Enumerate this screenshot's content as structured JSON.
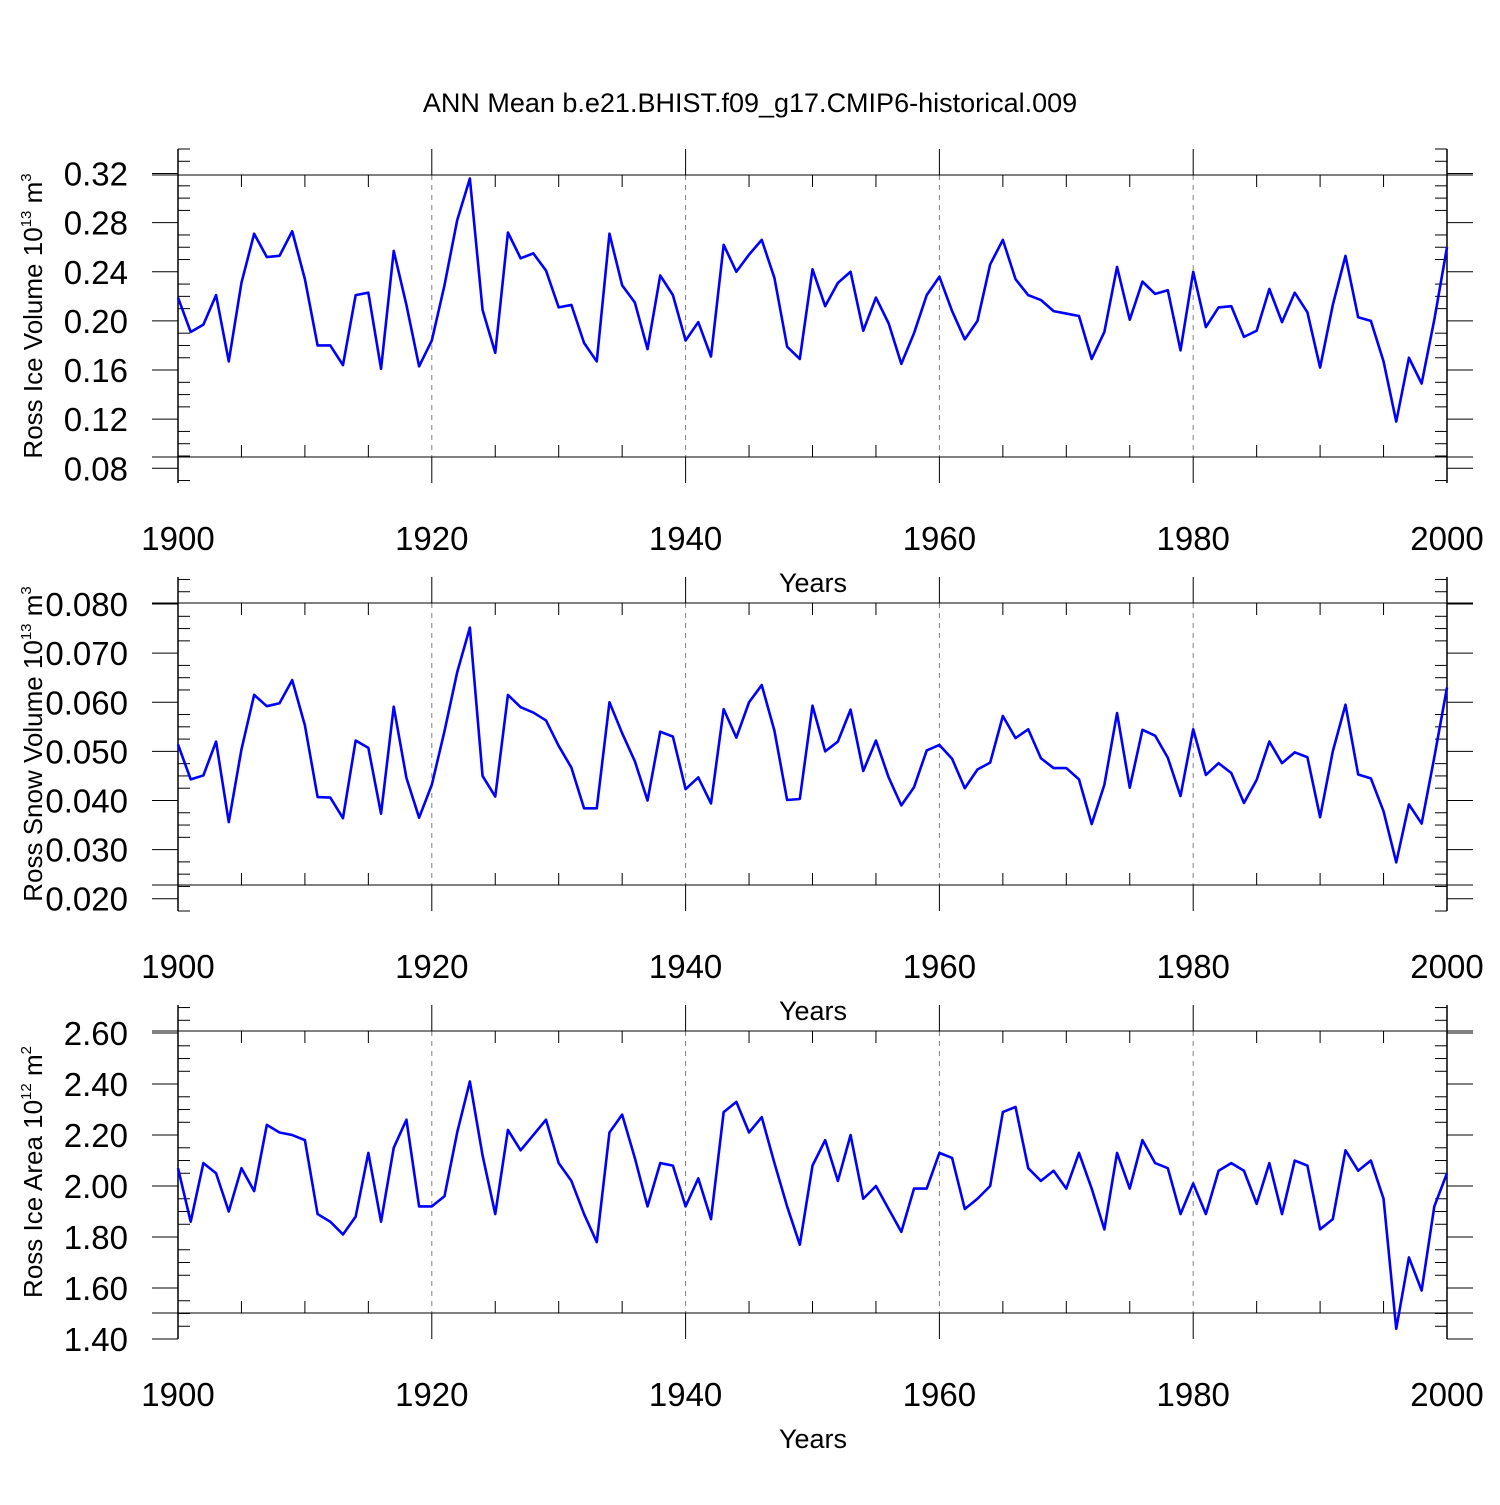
{
  "title": "ANN Mean b.e21.BHIST.f09_g17.CMIP6-historical.009",
  "colors": {
    "line": "#0000ff",
    "axis": "#000000",
    "grid": "#808080"
  },
  "chart_data": [
    {
      "type": "line",
      "title": "ANN Mean b.e21.BHIST.f09_g17.CMIP6-historical.009",
      "xlabel": "Years",
      "ylabel_main": "Ross Ice Volume 10",
      "ylabel_exp": "13",
      "ylabel_unit": " m",
      "ylabel_unit_exp": "3",
      "xlim": [
        1900,
        2000
      ],
      "ylim": [
        0.068,
        0.34
      ],
      "xticks": [
        1900,
        1920,
        1940,
        1960,
        1980,
        2000
      ],
      "xtick_labels": [
        "1900",
        "1920",
        "1940",
        "1960",
        "1980",
        "2000"
      ],
      "yticks": [
        0.08,
        0.12,
        0.16,
        0.2,
        0.24,
        0.28,
        0.32
      ],
      "ytick_labels": [
        "0.08",
        "0.12",
        "0.16",
        "0.20",
        "0.24",
        "0.28",
        "0.32"
      ],
      "grid": "dashed vertical lines at 1920, 1940, 1960, 1980; horizontal line at 0.32",
      "x_start": 1900,
      "values": [
        0.219,
        0.191,
        0.197,
        0.221,
        0.167,
        0.231,
        0.271,
        0.252,
        0.253,
        0.273,
        0.234,
        0.18,
        0.18,
        0.164,
        0.221,
        0.223,
        0.161,
        0.257,
        0.213,
        0.163,
        0.184,
        0.229,
        0.282,
        0.316,
        0.209,
        0.174,
        0.272,
        0.251,
        0.255,
        0.241,
        0.211,
        0.213,
        0.182,
        0.167,
        0.271,
        0.229,
        0.215,
        0.177,
        0.237,
        0.221,
        0.184,
        0.199,
        0.171,
        0.262,
        0.24,
        0.254,
        0.266,
        0.235,
        0.179,
        0.169,
        0.242,
        0.212,
        0.231,
        0.24,
        0.192,
        0.219,
        0.198,
        0.165,
        0.19,
        0.221,
        0.236,
        0.208,
        0.185,
        0.2,
        0.246,
        0.266,
        0.234,
        0.221,
        0.217,
        0.208,
        0.206,
        0.204,
        0.169,
        0.191,
        0.244,
        0.201,
        0.232,
        0.222,
        0.225,
        0.176,
        0.24,
        0.195,
        0.211,
        0.212,
        0.187,
        0.192,
        0.226,
        0.199,
        0.223,
        0.207,
        0.162,
        0.213,
        0.253,
        0.203,
        0.2,
        0.167,
        0.118,
        0.17,
        0.149,
        0.201,
        0.26
      ]
    },
    {
      "type": "line",
      "xlabel": "Years",
      "ylabel_main": "Ross Snow Volume 10",
      "ylabel_exp": "13",
      "ylabel_unit": " m",
      "ylabel_unit_exp": "3",
      "xlim": [
        1900,
        2000
      ],
      "ylim": [
        0.0175,
        0.0855
      ],
      "xticks": [
        1900,
        1920,
        1940,
        1960,
        1980,
        2000
      ],
      "xtick_labels": [
        "1900",
        "1920",
        "1940",
        "1960",
        "1980",
        "2000"
      ],
      "yticks": [
        0.02,
        0.03,
        0.04,
        0.05,
        0.06,
        0.07,
        0.08
      ],
      "ytick_labels": [
        "0.020",
        "0.030",
        "0.040",
        "0.050",
        "0.060",
        "0.070",
        "0.080"
      ],
      "grid": "dashed vertical lines at 1920, 1940, 1960, 1980; horizontal line at 0.080",
      "x_start": 1900,
      "values": [
        0.0514,
        0.0443,
        0.0451,
        0.052,
        0.0356,
        0.0504,
        0.0615,
        0.0592,
        0.0598,
        0.0645,
        0.0553,
        0.0407,
        0.0406,
        0.0364,
        0.0522,
        0.0507,
        0.0373,
        0.0591,
        0.0446,
        0.0365,
        0.0432,
        0.0541,
        0.0661,
        0.0752,
        0.045,
        0.0408,
        0.0615,
        0.059,
        0.0579,
        0.0563,
        0.0511,
        0.0467,
        0.0384,
        0.0384,
        0.06,
        0.0537,
        0.048,
        0.04,
        0.054,
        0.053,
        0.0423,
        0.0447,
        0.0394,
        0.0586,
        0.0528,
        0.06,
        0.0635,
        0.0542,
        0.0401,
        0.0403,
        0.0593,
        0.05,
        0.052,
        0.0585,
        0.046,
        0.0522,
        0.0447,
        0.039,
        0.0427,
        0.0502,
        0.0513,
        0.0485,
        0.0425,
        0.0463,
        0.0477,
        0.0572,
        0.0527,
        0.0545,
        0.0486,
        0.0466,
        0.0466,
        0.0443,
        0.0352,
        0.0432,
        0.0578,
        0.0426,
        0.0544,
        0.0532,
        0.0487,
        0.0409,
        0.0545,
        0.0452,
        0.0476,
        0.0456,
        0.0395,
        0.0442,
        0.052,
        0.0476,
        0.0498,
        0.0488,
        0.0366,
        0.05,
        0.0595,
        0.0453,
        0.0445,
        0.0378,
        0.0274,
        0.0392,
        0.0353,
        0.0488,
        0.063
      ]
    },
    {
      "type": "line",
      "xlabel": "Years",
      "ylabel_main": "Ross Ice Area 10",
      "ylabel_exp": "12",
      "ylabel_unit": " m",
      "ylabel_unit_exp": "2",
      "xlim": [
        1900,
        2000
      ],
      "ylim": [
        1.4,
        2.71
      ],
      "xticks": [
        1900,
        1920,
        1940,
        1960,
        1980,
        2000
      ],
      "xtick_labels": [
        "1900",
        "1920",
        "1940",
        "1960",
        "1980",
        "2000"
      ],
      "yticks": [
        1.4,
        1.6,
        1.8,
        2.0,
        2.2,
        2.4,
        2.6
      ],
      "ytick_labels": [
        "1.40",
        "1.60",
        "1.80",
        "2.00",
        "2.20",
        "2.40",
        "2.60"
      ],
      "grid": "dashed vertical lines at 1920, 1940, 1960, 1980; horizontal line at 2.60",
      "x_start": 1900,
      "values": [
        2.07,
        1.86,
        2.09,
        2.05,
        1.9,
        2.07,
        1.98,
        2.24,
        2.21,
        2.2,
        2.18,
        1.89,
        1.86,
        1.81,
        1.88,
        2.13,
        1.86,
        2.15,
        2.26,
        1.92,
        1.92,
        1.96,
        2.21,
        2.41,
        2.12,
        1.89,
        2.22,
        2.14,
        2.2,
        2.26,
        2.09,
        2.02,
        1.89,
        1.78,
        2.21,
        2.28,
        2.11,
        1.92,
        2.09,
        2.08,
        1.92,
        2.03,
        1.87,
        2.29,
        2.33,
        2.21,
        2.27,
        2.09,
        1.92,
        1.77,
        2.08,
        2.18,
        2.02,
        2.2,
        1.95,
        2.0,
        1.91,
        1.82,
        1.99,
        1.99,
        2.13,
        2.11,
        1.91,
        1.95,
        2.0,
        2.29,
        2.31,
        2.07,
        2.02,
        2.06,
        1.99,
        2.13,
        1.99,
        1.83,
        2.13,
        1.99,
        2.18,
        2.09,
        2.07,
        1.89,
        2.01,
        1.89,
        2.06,
        2.09,
        2.06,
        1.93,
        2.09,
        1.89,
        2.1,
        2.08,
        1.83,
        1.87,
        2.14,
        2.06,
        2.1,
        1.95,
        1.44,
        1.72,
        1.59,
        1.92,
        2.05
      ]
    }
  ]
}
